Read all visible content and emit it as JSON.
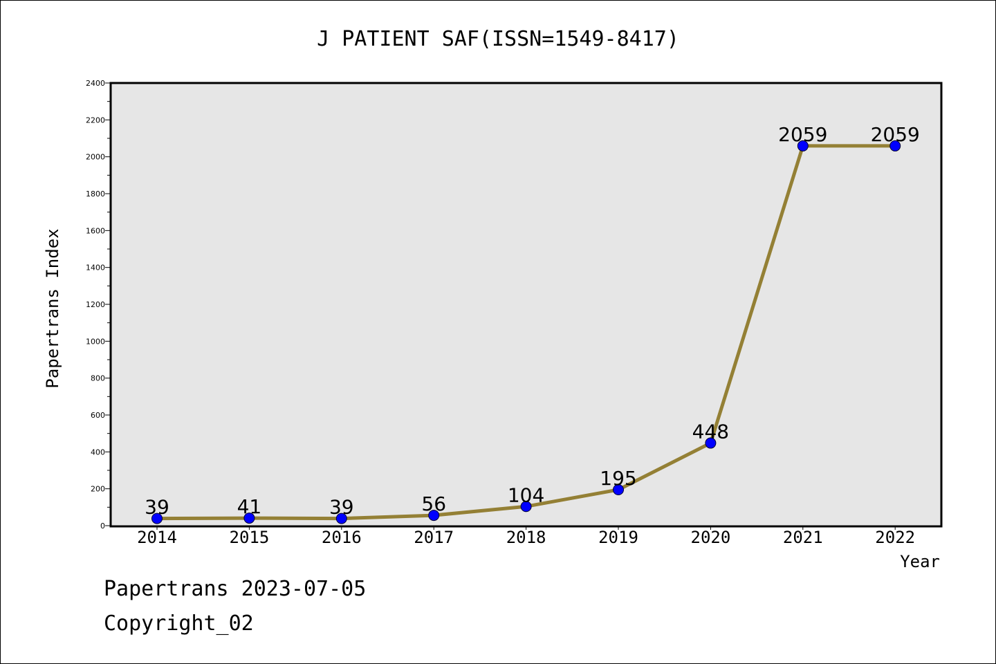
{
  "chart_data": {
    "type": "line",
    "title": "J PATIENT SAF(ISSN=1549-8417)",
    "xlabel": "Year",
    "ylabel": "Papertrans Index",
    "categories": [
      "2014",
      "2015",
      "2016",
      "2017",
      "2018",
      "2019",
      "2020",
      "2021",
      "2022"
    ],
    "series": [
      {
        "values": [
          39,
          41,
          39,
          56,
          104,
          195,
          448,
          2059,
          2059
        ]
      }
    ],
    "data_labels": [
      "39",
      "41",
      "39",
      "56",
      "104",
      "195",
      "448",
      "2059",
      "2059"
    ],
    "ylim": [
      0,
      2400
    ],
    "yticks": [
      "0",
      "200",
      "400",
      "600",
      "800",
      "1000",
      "1200",
      "1400",
      "1600",
      "1800",
      "2000",
      "2200",
      "2400"
    ],
    "grid": false,
    "colors": {
      "line": "#948035",
      "marker": "#0000ff",
      "plot_background": "#e6e6e6"
    }
  },
  "footer": {
    "date_line": "Papertrans 2023-07-05",
    "copyright_line": "Copyright_02"
  }
}
